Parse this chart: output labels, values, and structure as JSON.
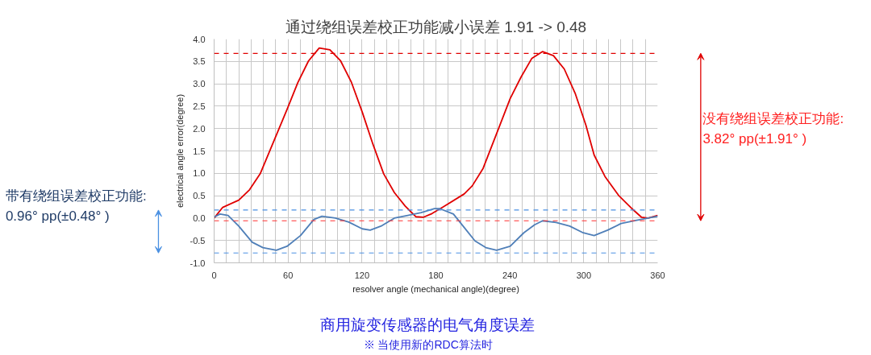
{
  "chart_data": {
    "type": "line",
    "title": "通过绕组误差校正功能减小误差 1.91 -> 0.48",
    "xlabel": "resolver angle (mechanical angle)(degree)",
    "ylabel": "electrical angle error(degree)",
    "annotations": [
      "带有绕组误差校正功能:\n0.96° pp(±0.48° )",
      "没有绕组误差校正功能:\n3.82° pp(±1.91° )",
      "商用旋变传感器的电气角度误差",
      "※ 当使用新的RDC算法时"
    ],
    "series": [
      {
        "color": "#e00000",
        "x": [
          0,
          7,
          20,
          28.7,
          37.4,
          48.3,
          59.2,
          68,
          76.6,
          85.3,
          94,
          102.7,
          111.5,
          120.2,
          128.9,
          137.6,
          146.3,
          155,
          163.7,
          170,
          176.8,
          185.4,
          203,
          209.5,
          218.3,
          229.3,
          240.3,
          249.1,
          257.9,
          266.6,
          275.4,
          284.2,
          293,
          301.8,
          308.4,
          317.2,
          328.2,
          339.1,
          346.8,
          352.3,
          360
        ],
        "values": [
          0,
          0.24,
          0.4,
          0.63,
          0.99,
          1.71,
          2.43,
          3.03,
          3.51,
          3.8,
          3.76,
          3.51,
          3.03,
          2.37,
          1.65,
          0.99,
          0.57,
          0.27,
          0.03,
          0.02,
          0.1,
          0.24,
          0.54,
          0.72,
          1.11,
          1.89,
          2.67,
          3.15,
          3.57,
          3.72,
          3.63,
          3.33,
          2.79,
          2.07,
          1.41,
          0.93,
          0.51,
          0.21,
          0.02,
          0,
          0.06
        ]
      },
      {
        "color": "#4f7fb8",
        "x": [
          0,
          4.8,
          11.3,
          20,
          30.9,
          39.6,
          50.5,
          59.2,
          70.1,
          81,
          87.5,
          98.4,
          109.3,
          120.2,
          126.7,
          135.4,
          146.3,
          157.2,
          168,
          178.9,
          183.2,
          194.2,
          203,
          211.7,
          220.5,
          229.3,
          240.3,
          251.3,
          260.1,
          266.6,
          277.6,
          288.6,
          299.6,
          308.4,
          319.4,
          330.3,
          341.3,
          352.3,
          360
        ],
        "values": [
          0.02,
          0.09,
          0.06,
          -0.18,
          -0.54,
          -0.66,
          -0.72,
          -0.63,
          -0.39,
          -0.03,
          0.04,
          0,
          -0.09,
          -0.24,
          -0.27,
          -0.18,
          0,
          0.06,
          0.12,
          0.21,
          0.21,
          0.09,
          -0.21,
          -0.51,
          -0.66,
          -0.72,
          -0.63,
          -0.33,
          -0.15,
          -0.06,
          -0.1,
          -0.18,
          -0.33,
          -0.39,
          -0.27,
          -0.12,
          -0.06,
          0,
          0.04
        ]
      }
    ],
    "xlim": [
      0,
      360
    ],
    "ylim": [
      -1.0,
      4.0
    ],
    "xticks": [
      0,
      {
        "value": 10,
        "label": null
      },
      {
        "value": 20,
        "label": null
      },
      {
        "value": 30,
        "label": null
      },
      {
        "value": 40,
        "label": null
      },
      {
        "value": 50,
        "label": null
      },
      60,
      {
        "value": 70,
        "label": null
      },
      {
        "value": 80,
        "label": null
      },
      {
        "value": 90,
        "label": null
      },
      {
        "value": 100,
        "label": null
      },
      {
        "value": 110,
        "label": null
      },
      120,
      {
        "value": 130,
        "label": null
      },
      {
        "value": 140,
        "label": null
      },
      {
        "value": 150,
        "label": null
      },
      {
        "value": 160,
        "label": null
      },
      {
        "value": 170,
        "label": null
      },
      180,
      {
        "value": 190,
        "label": null
      },
      {
        "value": 200,
        "label": null
      },
      {
        "value": 210,
        "label": null
      },
      {
        "value": 220,
        "label": null
      },
      {
        "value": 230,
        "label": null
      },
      240,
      {
        "value": 250,
        "label": null
      },
      {
        "value": 260,
        "label": null
      },
      {
        "value": 270,
        "label": null
      },
      {
        "value": 280,
        "label": null
      },
      {
        "value": 290,
        "label": null
      },
      300,
      {
        "value": 310,
        "label": null
      },
      {
        "value": 320,
        "label": null
      },
      {
        "value": 330,
        "label": null
      },
      {
        "value": 340,
        "label": null
      },
      {
        "value": 350,
        "label": null
      },
      360
    ],
    "yticks": [
      {
        "value": -1.0,
        "label": "-1.0"
      },
      {
        "value": -0.5,
        "label": "-0.5"
      },
      {
        "value": 0,
        "label": "0.0"
      },
      {
        "value": 0.5,
        "label": "0.5"
      },
      {
        "value": 1.0,
        "label": "1.0"
      },
      {
        "value": 1.5,
        "label": "1.5"
      },
      {
        "value": 2.0,
        "label": "2.0"
      },
      {
        "value": 2.5,
        "label": "2.5"
      },
      {
        "value": 3.0,
        "label": "3.0"
      },
      {
        "value": 3.5,
        "label": "3.5"
      },
      {
        "value": 4.0,
        "label": "4.0"
      }
    ],
    "ref_lines": [
      {
        "axis": "y",
        "value": 0.18,
        "color": "#4a90e2",
        "line_style": "dashed"
      },
      {
        "axis": "y",
        "value": -0.78,
        "color": "#4a90e2",
        "line_style": "dashed"
      },
      {
        "axis": "y",
        "value": 3.68,
        "color": "#e00000",
        "line_style": "dashed"
      },
      {
        "axis": "y",
        "value": -0.06,
        "color": "#ff3030",
        "line_style": "dashed"
      }
    ],
    "grid": true,
    "marker": "none",
    "line_style": "solid"
  }
}
